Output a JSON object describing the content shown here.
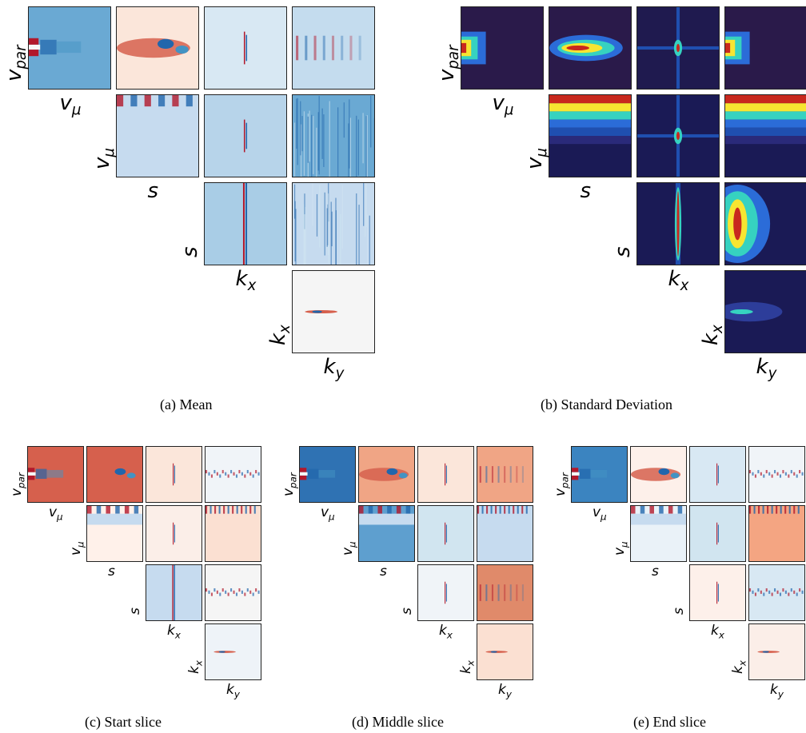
{
  "figures": [
    {
      "id": "a",
      "caption": "(a) Mean",
      "row_labels": [
        "v_par",
        "v_μ",
        "s",
        "k_x"
      ],
      "col_labels": [
        "v_μ",
        "s",
        "k_x",
        "k_y"
      ]
    },
    {
      "id": "b",
      "caption": "(b) Standard Deviation",
      "row_labels": [
        "v_par",
        "v_μ",
        "s",
        "k_x"
      ],
      "col_labels": [
        "v_μ",
        "s",
        "k_x",
        "k_y"
      ]
    },
    {
      "id": "c",
      "caption": "(c) Start slice",
      "row_labels": [
        "v_par",
        "v_μ",
        "s",
        "k_x"
      ],
      "col_labels": [
        "v_μ",
        "s",
        "k_x",
        "k_y"
      ]
    },
    {
      "id": "d",
      "caption": "(d) Middle slice",
      "row_labels": [
        "v_par",
        "v_μ",
        "s",
        "k_x"
      ],
      "col_labels": [
        "v_μ",
        "s",
        "k_x",
        "k_y"
      ]
    },
    {
      "id": "e",
      "caption": "(e) End slice",
      "row_labels": [
        "v_par",
        "v_μ",
        "s",
        "k_x"
      ],
      "col_labels": [
        "v_μ",
        "s",
        "k_x",
        "k_y"
      ]
    }
  ],
  "colormaps": {
    "diverging": "RdBu",
    "sequential": "jet"
  }
}
